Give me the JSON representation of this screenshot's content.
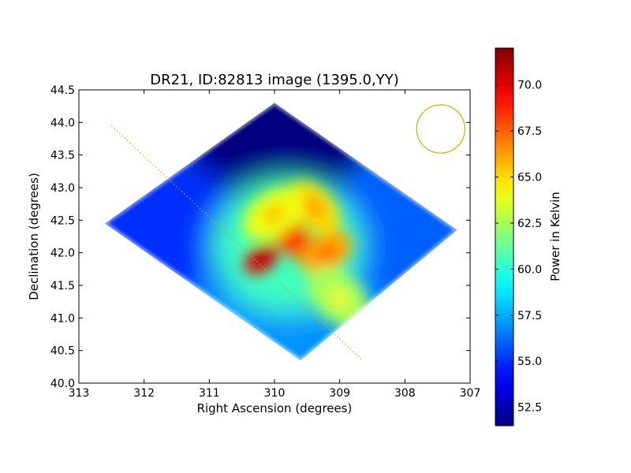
{
  "chart_data": {
    "type": "heatmap",
    "title": "DR21, ID:82813 image (1395.0,YY)",
    "xlabel": "Right Ascension (degrees)",
    "ylabel": "Declination (degrees)",
    "xlim": [
      313,
      307
    ],
    "ylim": [
      40.0,
      44.5
    ],
    "x_ticks": [
      313,
      312,
      311,
      310,
      309,
      308,
      307
    ],
    "x_tick_labels": [
      "313",
      "312",
      "311",
      "310",
      "309",
      "308",
      "307"
    ],
    "y_ticks": [
      40.0,
      40.5,
      41.0,
      41.5,
      42.0,
      42.5,
      43.0,
      43.5,
      44.0,
      44.5
    ],
    "y_tick_labels": [
      "40.0",
      "40.5",
      "41.0",
      "41.5",
      "42.0",
      "42.5",
      "43.0",
      "43.5",
      "44.0",
      "44.5"
    ],
    "colorbar": {
      "label": "Power in Kelvin",
      "min": 51.5,
      "max": 72.0,
      "ticks": [
        52.5,
        55.0,
        57.5,
        60.0,
        62.5,
        65.0,
        67.5,
        70.0
      ],
      "tick_labels": [
        "52.5",
        "55.0",
        "57.5",
        "60.0",
        "62.5",
        "65.0",
        "67.5",
        "70.0"
      ],
      "colormap": "jet"
    },
    "footprint": {
      "vertices": [
        [
          310.0,
          44.3
        ],
        [
          307.2,
          42.35
        ],
        [
          309.6,
          40.35
        ],
        [
          312.6,
          42.45
        ]
      ],
      "edge_values": [
        51.5,
        56.0,
        57.0,
        55.0
      ]
    },
    "hotspots": [
      {
        "ra": 310.2,
        "dec": 41.9,
        "value": 71.5
      },
      {
        "ra": 309.7,
        "dec": 42.2,
        "value": 69.5
      },
      {
        "ra": 309.2,
        "dec": 42.0,
        "value": 68.0
      },
      {
        "ra": 309.4,
        "dec": 42.7,
        "value": 67.0
      },
      {
        "ra": 310.0,
        "dec": 42.6,
        "value": 66.0
      },
      {
        "ra": 309.0,
        "dec": 41.3,
        "value": 64.5
      }
    ],
    "scan_line": {
      "ra": [
        312.5,
        308.65
      ],
      "dec": [
        43.95,
        40.35
      ],
      "color": "#b8b800",
      "style": "dotted"
    },
    "beam_circle": {
      "ra": 307.45,
      "dec": 43.9,
      "radius_deg_dec": 0.37,
      "color": "#c8b400"
    }
  }
}
